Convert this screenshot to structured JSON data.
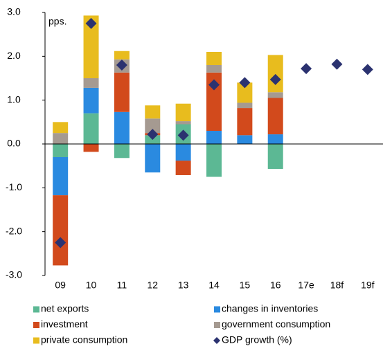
{
  "chart_data": {
    "type": "bar",
    "stacked": true,
    "annotation": "pps.",
    "categories": [
      "09",
      "10",
      "11",
      "12",
      "13",
      "14",
      "15",
      "16",
      "17e",
      "18f",
      "19f"
    ],
    "series": [
      {
        "name": "net exports",
        "color": "#5cb894",
        "values": [
          -0.3,
          0.7,
          -0.32,
          0.2,
          0.45,
          -0.75,
          0,
          -0.57,
          null,
          null,
          null
        ]
      },
      {
        "name": "changes in inventories",
        "color": "#2a8ae0",
        "values": [
          -0.87,
          0.58,
          0.73,
          -0.65,
          -0.38,
          0.3,
          0.2,
          0.22,
          null,
          null,
          null
        ]
      },
      {
        "name": "investment",
        "color": "#d24a1c",
        "values": [
          -1.6,
          -0.18,
          0.9,
          0.05,
          -0.33,
          1.33,
          0.62,
          0.83,
          null,
          null,
          null
        ]
      },
      {
        "name": "government consumption",
        "color": "#a59a91",
        "values": [
          0.25,
          0.22,
          0.3,
          0.33,
          0.07,
          0.17,
          0.12,
          0.13,
          null,
          null,
          null
        ]
      },
      {
        "name": "private consumption",
        "color": "#e8bc1e",
        "values": [
          0.25,
          1.43,
          0.19,
          0.3,
          0.4,
          0.3,
          0.46,
          0.85,
          null,
          null,
          null
        ]
      },
      {
        "name": "GDP growth (%)",
        "color": "#2b3270",
        "type": "scatter",
        "marker": "diamond",
        "values": [
          -2.25,
          2.75,
          1.8,
          0.22,
          0.2,
          1.35,
          1.4,
          1.47,
          1.72,
          1.82,
          1.7
        ]
      }
    ],
    "ylim": [
      -3,
      3
    ],
    "yticks": [
      {
        "value": 3,
        "label": "3.0"
      },
      {
        "value": 2,
        "label": "2.0"
      },
      {
        "value": 1,
        "label": "1.0"
      },
      {
        "value": 0,
        "label": "0.0"
      },
      {
        "value": -1,
        "label": "-1.0"
      },
      {
        "value": -2,
        "label": "-2.0"
      },
      {
        "value": -3,
        "label": "-3.0"
      }
    ],
    "legend": "bottom"
  }
}
